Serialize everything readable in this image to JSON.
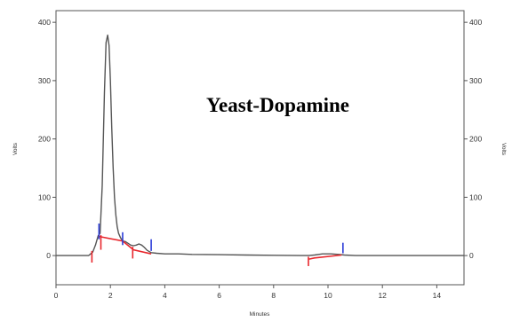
{
  "chart_data": {
    "type": "line",
    "annotation": "Yeast-Dopamine",
    "xlabel": "Minutes",
    "ylabel_left": "Volts",
    "ylabel_right": "Volts",
    "xlim": [
      0,
      15
    ],
    "ylim": [
      -50,
      420
    ],
    "x_ticks": [
      0,
      2,
      4,
      6,
      8,
      10,
      12,
      14
    ],
    "y_ticks": [
      0,
      100,
      200,
      300,
      400
    ],
    "grid": false,
    "colors": {
      "trace": "#555555",
      "baseline": "#e8262c",
      "peak_marker": "#2b3cd8",
      "axis": "#555555"
    },
    "series": [
      {
        "color": "#555555",
        "x": [
          0,
          1.2,
          1.35,
          1.45,
          1.55,
          1.62,
          1.7,
          1.78,
          1.84,
          1.9,
          1.95,
          2.0,
          2.05,
          2.1,
          2.15,
          2.2,
          2.25,
          2.3,
          2.38,
          2.45,
          2.55,
          2.65,
          2.75,
          2.85,
          2.95,
          3.05,
          3.15,
          3.25,
          3.35,
          3.5,
          3.7,
          4.0,
          4.5,
          5.0,
          6.0,
          7.0,
          8.0,
          9.0,
          9.3,
          9.5,
          9.8,
          10.1,
          10.4,
          10.6,
          11.0,
          12.0,
          14.0,
          15.0
        ],
        "y": [
          0,
          0,
          6,
          18,
          34,
          38,
          120,
          280,
          365,
          378,
          360,
          300,
          220,
          150,
          100,
          70,
          50,
          38,
          30,
          25,
          24,
          21,
          18,
          17,
          18,
          20,
          18,
          14,
          9,
          5,
          4,
          3,
          3,
          2,
          1.5,
          1,
          0.5,
          0,
          0,
          1,
          3,
          3,
          2,
          1,
          0,
          0,
          0,
          0
        ]
      }
    ],
    "baseline_segments": [
      {
        "x": [
          1.55,
          2.45,
          2.85,
          3.5
        ],
        "y": [
          33,
          25,
          10,
          3
        ]
      },
      {
        "x": [
          9.3,
          9.5,
          10.5
        ],
        "y": [
          -6,
          -4,
          1
        ]
      }
    ],
    "baseline_drop_lines": [
      {
        "x": 1.32,
        "y": [
          -12,
          8
        ]
      },
      {
        "x": 1.65,
        "y": [
          10,
          35
        ]
      },
      {
        "x": 2.82,
        "y": [
          -5,
          15
        ]
      },
      {
        "x": 9.28,
        "y": [
          -18,
          -2
        ]
      }
    ],
    "peak_markers": [
      {
        "x": 1.58,
        "y": [
          28,
          55
        ]
      },
      {
        "x": 2.45,
        "y": [
          18,
          40
        ]
      },
      {
        "x": 3.5,
        "y": [
          8,
          28
        ]
      },
      {
        "x": 10.55,
        "y": [
          4,
          22
        ]
      }
    ]
  }
}
